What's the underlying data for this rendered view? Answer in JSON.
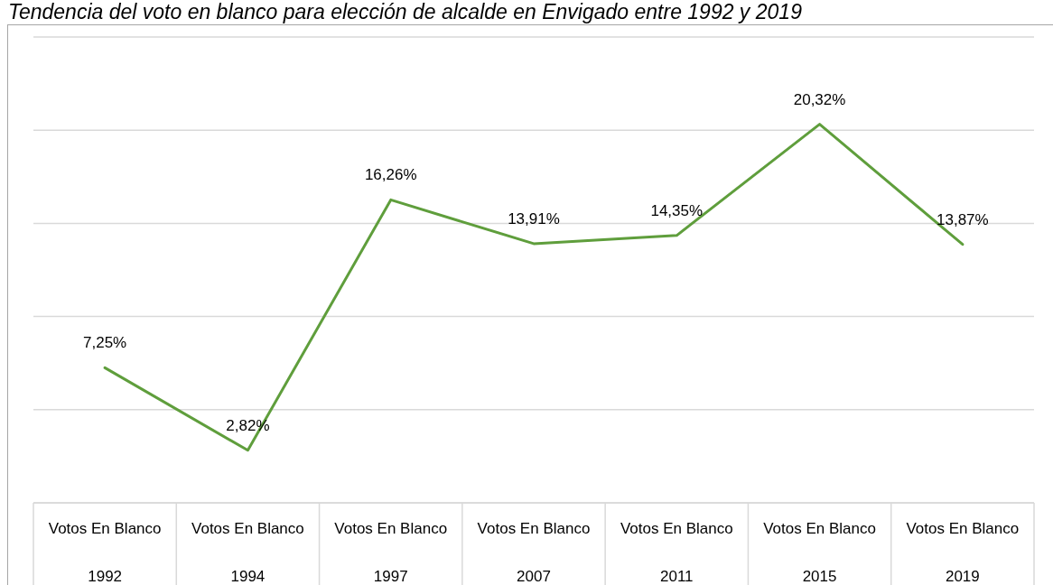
{
  "chart_data": {
    "type": "line",
    "title": "Tendencia del voto en blanco para elección de alcalde en Envigado entre 1992 y 2019",
    "categories": [
      "Votos En Blanco\n1992",
      "Votos En Blanco\n1994",
      "Votos En Blanco\n1997",
      "Votos En Blanco\n2007",
      "Votos En Blanco\n2011",
      "Votos En Blanco\n2015",
      "Votos En Blanco\n2019"
    ],
    "series": [
      {
        "color": "#5f9e3c",
        "values": [
          7.25,
          2.82,
          16.26,
          13.91,
          14.35,
          20.32,
          13.87
        ],
        "value_labels": [
          "7,25%",
          "2,82%",
          "16,26%",
          "13,91%",
          "14,35%",
          "20,32%",
          "13,87%"
        ]
      }
    ],
    "tick_labels": "x",
    "grid": "y",
    "marker": "none",
    "line_style": "solid"
  }
}
